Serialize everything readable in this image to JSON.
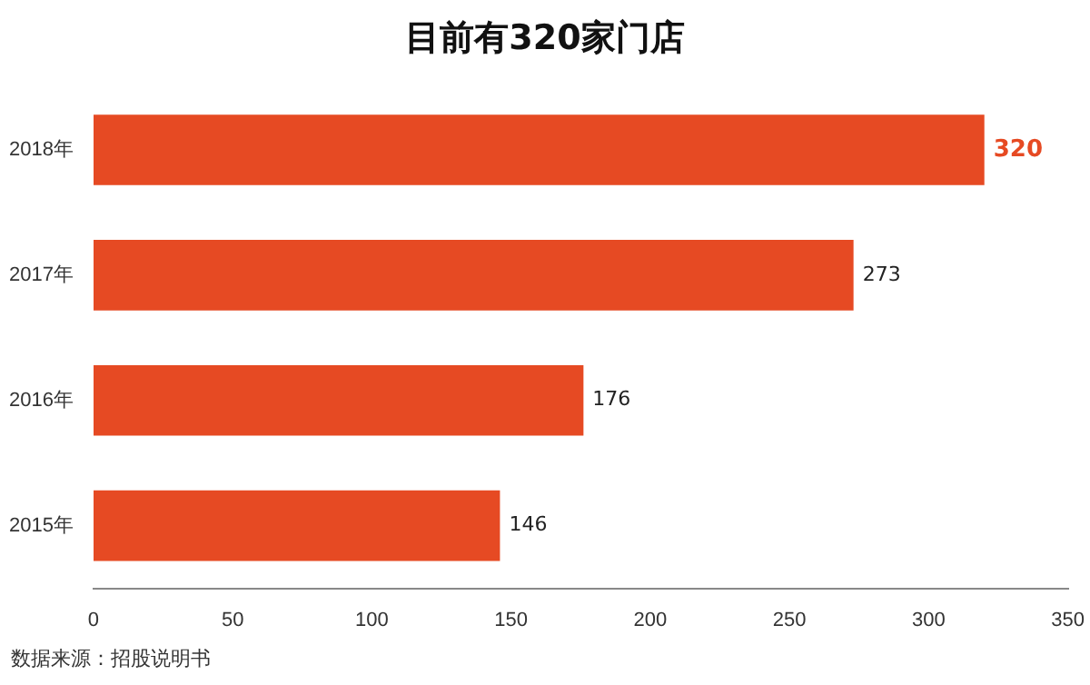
{
  "chart_data": {
    "type": "bar",
    "orientation": "horizontal",
    "title": "目前有320家门店",
    "categories": [
      "2018年",
      "2017年",
      "2016年",
      "2015年"
    ],
    "values": [
      320,
      273,
      176,
      146
    ],
    "color": "#e64a23",
    "xlim": [
      0,
      350
    ],
    "xticks": [
      0,
      50,
      100,
      150,
      200,
      250,
      300,
      350
    ],
    "grid": false,
    "data_labels": true,
    "annotations": [
      "数据来源：招股说明书"
    ]
  }
}
